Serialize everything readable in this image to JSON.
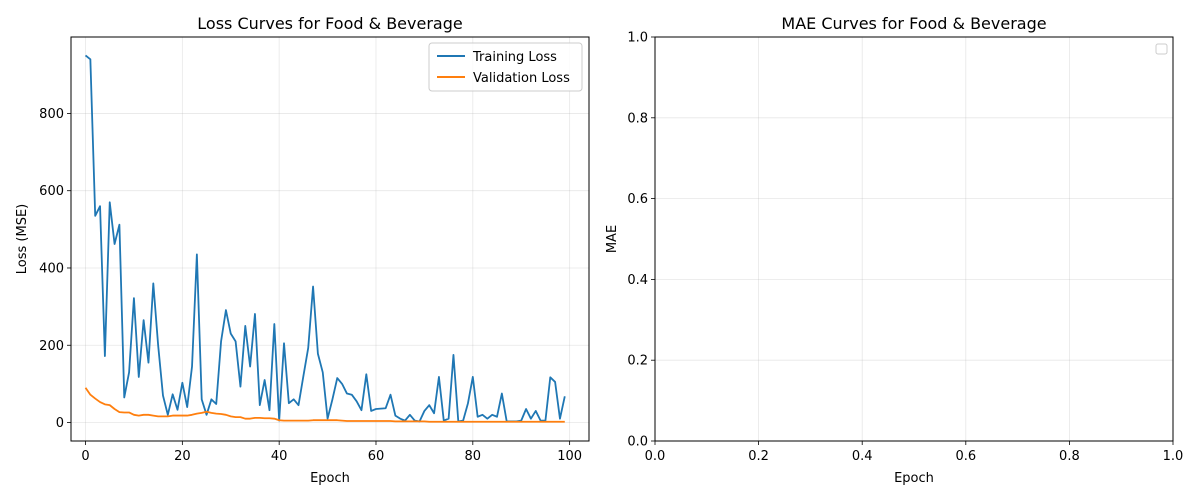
{
  "chart_data": [
    {
      "type": "line",
      "title": "Loss Curves for Food & Beverage",
      "xlabel": "Epoch",
      "ylabel": "Loss (MSE)",
      "xlim": [
        -3,
        104
      ],
      "ylim": [
        -47.8,
        997.8
      ],
      "xticks": [
        0,
        20,
        40,
        60,
        80,
        100
      ],
      "yticks": [
        0,
        200,
        400,
        600,
        800
      ],
      "grid": true,
      "legend": "upper-right",
      "series": [
        {
          "name": "Training Loss",
          "color": "#1f77b4",
          "x": [
            0,
            1,
            2,
            3,
            4,
            5,
            6,
            7,
            8,
            9,
            10,
            11,
            12,
            13,
            14,
            15,
            16,
            17,
            18,
            19,
            20,
            21,
            22,
            23,
            24,
            25,
            26,
            27,
            28,
            29,
            30,
            31,
            32,
            33,
            34,
            35,
            36,
            37,
            38,
            39,
            40,
            41,
            42,
            43,
            44,
            45,
            46,
            47,
            48,
            49,
            50,
            51,
            52,
            53,
            54,
            55,
            56,
            57,
            58,
            59,
            60,
            61,
            62,
            63,
            64,
            65,
            66,
            67,
            68,
            69,
            70,
            71,
            72,
            73,
            74,
            75,
            76,
            77,
            78,
            79,
            80,
            81,
            82,
            83,
            84,
            85,
            86,
            87,
            88,
            89,
            90,
            91,
            92,
            93,
            94,
            95,
            96,
            97,
            98,
            99
          ],
          "y": [
            950,
            940,
            535,
            560,
            172,
            570,
            462,
            512,
            65,
            130,
            322,
            118,
            265,
            155,
            360,
            200,
            70,
            20,
            73,
            33,
            103,
            40,
            145,
            435,
            60,
            20,
            60,
            48,
            210,
            291,
            230,
            210,
            93,
            250,
            145,
            281,
            45,
            110,
            32,
            255,
            5,
            205,
            50,
            60,
            45,
            120,
            193,
            352,
            178,
            130,
            10,
            60,
            115,
            100,
            75,
            72,
            55,
            32,
            125,
            30,
            35,
            36,
            37,
            72,
            18,
            10,
            5,
            20,
            5,
            3,
            30,
            45,
            24,
            118,
            5,
            10,
            175,
            3,
            5,
            50,
            118,
            15,
            20,
            10,
            20,
            15,
            75,
            3,
            3,
            3,
            5,
            35,
            10,
            30,
            5,
            5,
            117,
            105,
            10,
            68
          ]
        },
        {
          "name": "Validation Loss",
          "color": "#ff7f0e",
          "x": [
            0,
            1,
            2,
            3,
            4,
            5,
            6,
            7,
            8,
            9,
            10,
            11,
            12,
            13,
            14,
            15,
            16,
            17,
            18,
            19,
            20,
            21,
            22,
            23,
            24,
            25,
            26,
            27,
            28,
            29,
            30,
            31,
            32,
            33,
            34,
            35,
            36,
            37,
            38,
            39,
            40,
            41,
            42,
            43,
            44,
            45,
            46,
            47,
            48,
            49,
            50,
            51,
            52,
            53,
            54,
            55,
            56,
            57,
            58,
            59,
            60,
            61,
            62,
            63,
            64,
            65,
            66,
            67,
            68,
            69,
            70,
            71,
            72,
            73,
            74,
            75,
            76,
            77,
            78,
            79,
            80,
            81,
            82,
            83,
            84,
            85,
            86,
            87,
            88,
            89,
            90,
            91,
            92,
            93,
            94,
            95,
            96,
            97,
            98,
            99
          ],
          "y": [
            90,
            72,
            62,
            53,
            47,
            45,
            35,
            27,
            26,
            26,
            20,
            18,
            20,
            20,
            18,
            16,
            16,
            16,
            18,
            18,
            18,
            18,
            20,
            23,
            25,
            28,
            25,
            23,
            22,
            20,
            16,
            14,
            14,
            10,
            10,
            12,
            12,
            11,
            11,
            10,
            6,
            5,
            5,
            5,
            5,
            5,
            5,
            6,
            6,
            6,
            6,
            6,
            6,
            5,
            4,
            4,
            4,
            4,
            4,
            4,
            4,
            4,
            4,
            4,
            3,
            3,
            3,
            3,
            3,
            3,
            3,
            2,
            2,
            2,
            2,
            2,
            2,
            2,
            2,
            2,
            2,
            2,
            2,
            2,
            2,
            2,
            2,
            2,
            2,
            2,
            2,
            2,
            2,
            2,
            2,
            2,
            2,
            2,
            2,
            2
          ]
        }
      ]
    },
    {
      "type": "line",
      "title": "MAE Curves for Food & Beverage",
      "xlabel": "Epoch",
      "ylabel": "MAE",
      "xlim": [
        0,
        1
      ],
      "ylim": [
        0,
        1
      ],
      "xticks": [
        0.0,
        0.2,
        0.4,
        0.6,
        0.8,
        1.0
      ],
      "yticks": [
        0.0,
        0.2,
        0.4,
        0.6,
        0.8,
        1.0
      ],
      "grid": true,
      "legend": "upper-right (empty)",
      "series": []
    }
  ]
}
